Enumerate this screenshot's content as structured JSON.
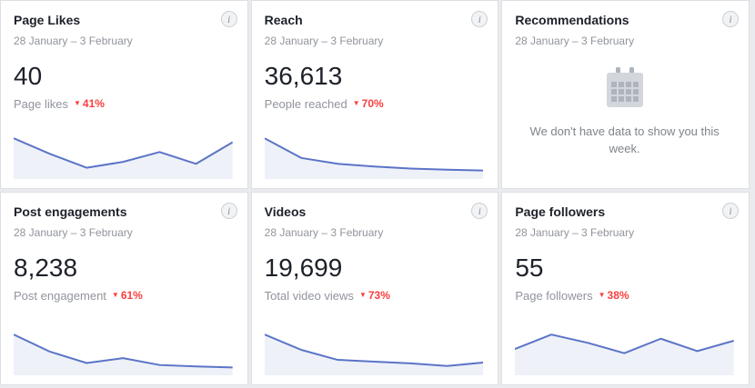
{
  "icons": {
    "down_arrow": "▼",
    "info": "i"
  },
  "colors": {
    "spark_line": "#5b74c7",
    "spark_fill": "#eef1f8",
    "delta_red": "#fa3e3e",
    "page_bg": "#e9ebee",
    "card_border": "#dddfe2"
  },
  "cards": [
    {
      "title": "Page Likes",
      "date_range": "28 January – 3 February",
      "value": "40",
      "metric_label": "Page likes",
      "delta": "41%",
      "delta_direction": "down",
      "chart_data": {
        "type": "area",
        "x": [
          1,
          2,
          3,
          4,
          5,
          6,
          7
        ],
        "values": [
          10,
          6,
          2.5,
          4,
          6.5,
          3.5,
          9
        ],
        "title": "Page Likes trend",
        "legend": "none",
        "grid": false
      }
    },
    {
      "title": "Reach",
      "date_range": "28 January – 3 February",
      "value": "36,613",
      "metric_label": "People reached",
      "delta": "70%",
      "delta_direction": "down",
      "chart_data": {
        "type": "area",
        "x": [
          1,
          2,
          3,
          4,
          5,
          6,
          7
        ],
        "values": [
          10,
          5,
          3.5,
          2.8,
          2.3,
          2,
          1.8
        ],
        "title": "Reach trend",
        "legend": "none",
        "grid": false
      }
    },
    {
      "title": "Recommendations",
      "date_range": "28 January – 3 February",
      "empty_message": "We don't have data to show you this week."
    },
    {
      "title": "Post engagements",
      "date_range": "28 January – 3 February",
      "value": "8,238",
      "metric_label": "Post engagement",
      "delta": "61%",
      "delta_direction": "down",
      "chart_data": {
        "type": "area",
        "x": [
          1,
          2,
          3,
          4,
          5,
          6,
          7
        ],
        "values": [
          8,
          4.5,
          2.2,
          3.2,
          1.8,
          1.5,
          1.3
        ],
        "title": "Post engagements trend",
        "legend": "none",
        "grid": false
      }
    },
    {
      "title": "Videos",
      "date_range": "28 January – 3 February",
      "value": "19,699",
      "metric_label": "Total video views",
      "delta": "73%",
      "delta_direction": "down",
      "chart_data": {
        "type": "area",
        "x": [
          1,
          2,
          3,
          4,
          5,
          6,
          7
        ],
        "values": [
          9,
          5.5,
          3.2,
          2.8,
          2.4,
          1.8,
          2.6
        ],
        "title": "Videos trend",
        "legend": "none",
        "grid": false
      }
    },
    {
      "title": "Page followers",
      "date_range": "28 January – 3 February",
      "value": "55",
      "metric_label": "Page followers",
      "delta": "38%",
      "delta_direction": "down",
      "chart_data": {
        "type": "area",
        "x": [
          1,
          2,
          3,
          4,
          5,
          6,
          7
        ],
        "values": [
          6,
          9.5,
          7.5,
          5,
          8.5,
          5.5,
          8
        ],
        "title": "Page followers trend",
        "legend": "none",
        "grid": false
      }
    }
  ]
}
